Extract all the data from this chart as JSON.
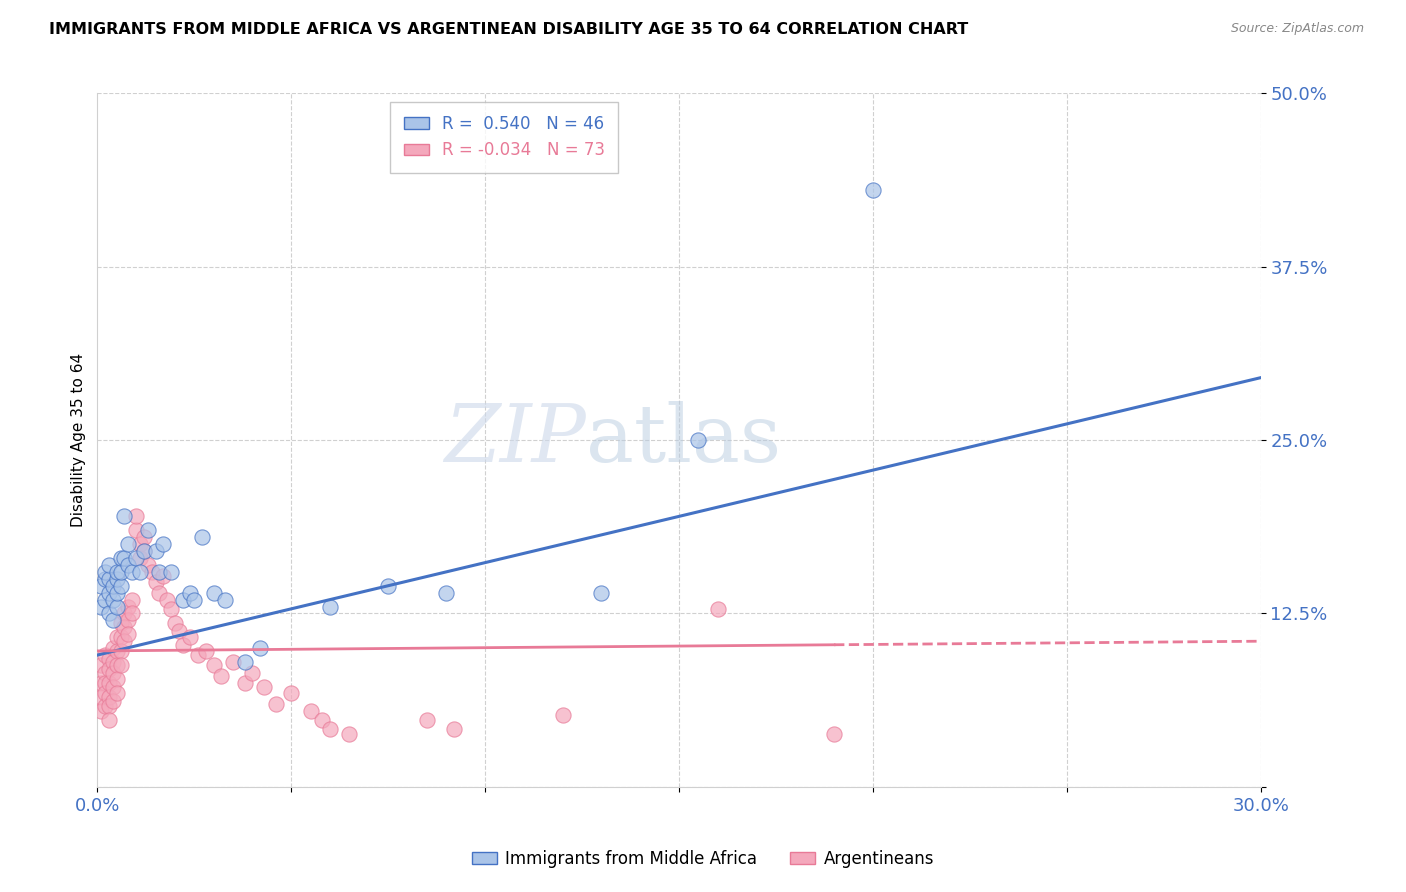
{
  "title": "IMMIGRANTS FROM MIDDLE AFRICA VS ARGENTINEAN DISABILITY AGE 35 TO 64 CORRELATION CHART",
  "source": "Source: ZipAtlas.com",
  "ylabel": "Disability Age 35 to 64",
  "xmin": 0.0,
  "xmax": 0.3,
  "ymin": 0.0,
  "ymax": 0.5,
  "ytick_vals": [
    0.0,
    0.125,
    0.25,
    0.375,
    0.5
  ],
  "ytick_labels": [
    "",
    "12.5%",
    "25.0%",
    "37.5%",
    "50.0%"
  ],
  "xtick_vals": [
    0.0,
    0.05,
    0.1,
    0.15,
    0.2,
    0.25,
    0.3
  ],
  "xtick_labels": [
    "0.0%",
    "",
    "",
    "",
    "",
    "",
    "30.0%"
  ],
  "blue_R": 0.54,
  "blue_N": 46,
  "pink_R": -0.034,
  "pink_N": 73,
  "blue_color": "#aac4e8",
  "pink_color": "#f4a8bc",
  "blue_line_color": "#4472c4",
  "pink_line_color": "#e87a97",
  "legend_label_blue": "Immigrants from Middle Africa",
  "legend_label_pink": "Argentineans",
  "watermark": "ZIPatlas",
  "title_fontsize": 11.5,
  "axis_tick_color": "#4472c4",
  "blue_scatter_x": [
    0.001,
    0.001,
    0.002,
    0.002,
    0.002,
    0.003,
    0.003,
    0.003,
    0.003,
    0.004,
    0.004,
    0.004,
    0.005,
    0.005,
    0.005,
    0.005,
    0.006,
    0.006,
    0.006,
    0.007,
    0.007,
    0.008,
    0.008,
    0.009,
    0.01,
    0.011,
    0.012,
    0.013,
    0.015,
    0.016,
    0.017,
    0.019,
    0.022,
    0.024,
    0.025,
    0.027,
    0.03,
    0.033,
    0.038,
    0.042,
    0.06,
    0.075,
    0.09,
    0.13,
    0.2,
    0.155
  ],
  "blue_scatter_y": [
    0.13,
    0.145,
    0.135,
    0.15,
    0.155,
    0.125,
    0.14,
    0.15,
    0.16,
    0.12,
    0.135,
    0.145,
    0.13,
    0.14,
    0.15,
    0.155,
    0.145,
    0.155,
    0.165,
    0.195,
    0.165,
    0.175,
    0.16,
    0.155,
    0.165,
    0.155,
    0.17,
    0.185,
    0.17,
    0.155,
    0.175,
    0.155,
    0.135,
    0.14,
    0.135,
    0.18,
    0.14,
    0.135,
    0.09,
    0.1,
    0.13,
    0.145,
    0.14,
    0.14,
    0.43,
    0.25
  ],
  "pink_scatter_x": [
    0.001,
    0.001,
    0.001,
    0.001,
    0.002,
    0.002,
    0.002,
    0.002,
    0.002,
    0.003,
    0.003,
    0.003,
    0.003,
    0.003,
    0.003,
    0.004,
    0.004,
    0.004,
    0.004,
    0.004,
    0.005,
    0.005,
    0.005,
    0.005,
    0.005,
    0.006,
    0.006,
    0.006,
    0.006,
    0.007,
    0.007,
    0.007,
    0.008,
    0.008,
    0.008,
    0.009,
    0.009,
    0.01,
    0.01,
    0.011,
    0.011,
    0.012,
    0.012,
    0.013,
    0.014,
    0.015,
    0.016,
    0.017,
    0.018,
    0.019,
    0.02,
    0.021,
    0.022,
    0.024,
    0.026,
    0.028,
    0.03,
    0.032,
    0.035,
    0.038,
    0.04,
    0.043,
    0.046,
    0.05,
    0.055,
    0.058,
    0.06,
    0.065,
    0.16,
    0.19,
    0.085,
    0.092,
    0.12
  ],
  "pink_scatter_y": [
    0.088,
    0.075,
    0.065,
    0.055,
    0.095,
    0.082,
    0.075,
    0.068,
    0.058,
    0.092,
    0.085,
    0.075,
    0.065,
    0.058,
    0.048,
    0.1,
    0.09,
    0.082,
    0.072,
    0.062,
    0.108,
    0.098,
    0.088,
    0.078,
    0.068,
    0.118,
    0.108,
    0.098,
    0.088,
    0.125,
    0.115,
    0.105,
    0.13,
    0.12,
    0.11,
    0.135,
    0.125,
    0.185,
    0.195,
    0.175,
    0.165,
    0.18,
    0.17,
    0.16,
    0.155,
    0.148,
    0.14,
    0.152,
    0.135,
    0.128,
    0.118,
    0.112,
    0.102,
    0.108,
    0.095,
    0.098,
    0.088,
    0.08,
    0.09,
    0.075,
    0.082,
    0.072,
    0.06,
    0.068,
    0.055,
    0.048,
    0.042,
    0.038,
    0.128,
    0.038,
    0.048,
    0.042,
    0.052
  ],
  "blue_trend_x0": 0.0,
  "blue_trend_y0": 0.095,
  "blue_trend_x1": 0.3,
  "blue_trend_y1": 0.295,
  "pink_trend_x0": 0.0,
  "pink_trend_y0": 0.098,
  "pink_trend_x1": 0.3,
  "pink_trend_y1": 0.105
}
